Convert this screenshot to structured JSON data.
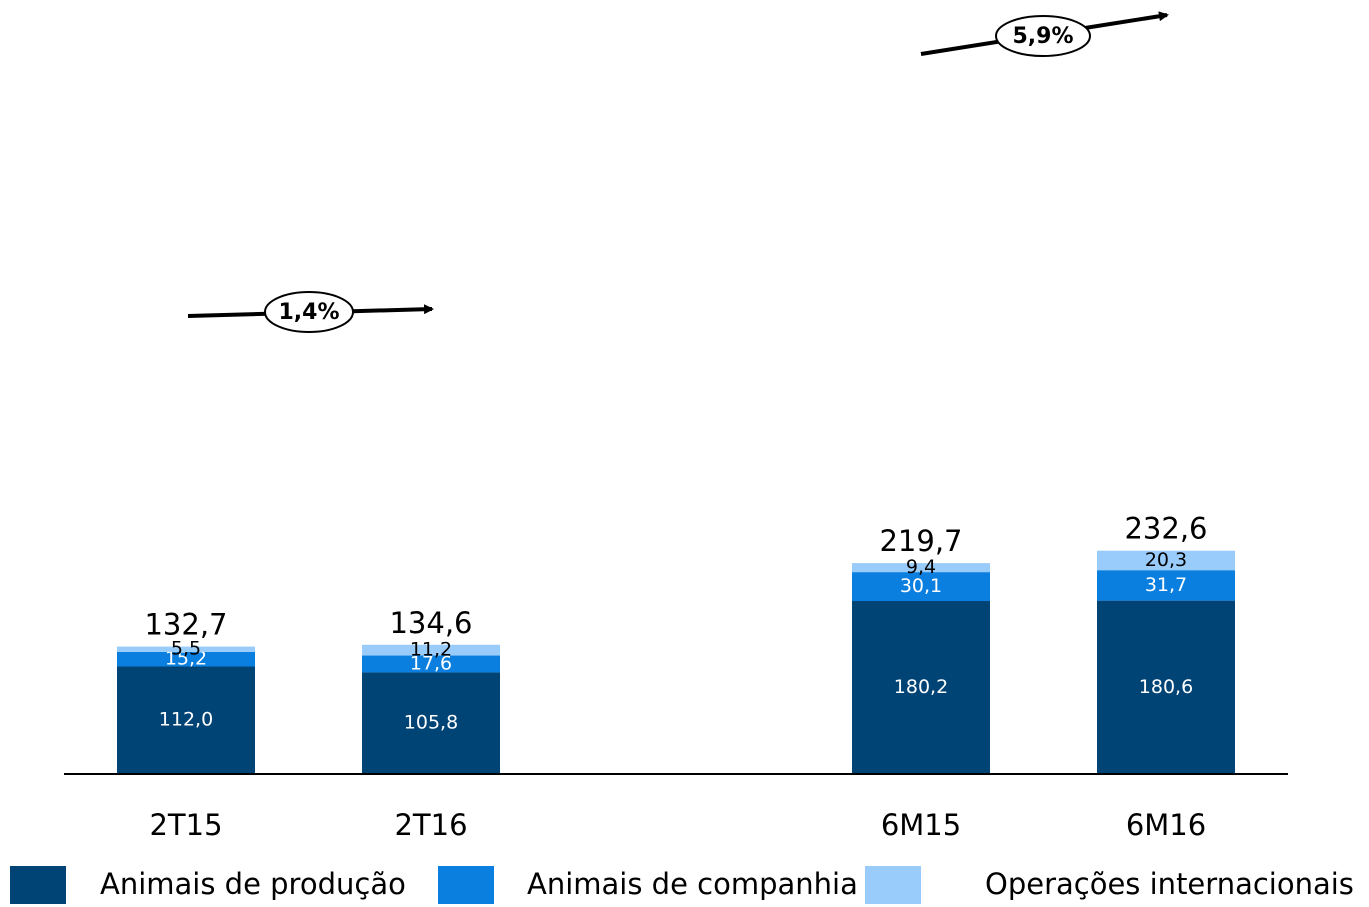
{
  "chart_data": {
    "type": "bar",
    "stacked": true,
    "categories": [
      "2T15",
      "2T16",
      "6M15",
      "6M16"
    ],
    "series": [
      {
        "name": "Animais de produção",
        "values": [
          112.0,
          105.8,
          180.2,
          180.6
        ],
        "labels": [
          "112,0",
          "105,8",
          "180,2",
          "180,6"
        ],
        "color": "#004375"
      },
      {
        "name": "Animais de companhia",
        "values": [
          15.2,
          17.6,
          30.1,
          31.7
        ],
        "labels": [
          "15,2",
          "17,6",
          "30,1",
          "31,7"
        ],
        "color": "#0a7fe0"
      },
      {
        "name": "Operações internacionais",
        "values": [
          5.5,
          11.2,
          9.4,
          20.3
        ],
        "labels": [
          "5,5",
          "11,2",
          "9,4",
          "20,3"
        ],
        "color": "#99ccfa"
      }
    ],
    "totals": [
      "132,7",
      "134,6",
      "219,7",
      "232,6"
    ],
    "total_values": [
      132.7,
      134.6,
      219.7,
      232.6
    ],
    "growth": [
      {
        "from": "2T15",
        "to": "2T16",
        "label": "1,4%"
      },
      {
        "from": "6M15",
        "to": "6M16",
        "label": "5,9%"
      }
    ],
    "ylim": [
      0,
      280
    ],
    "legend_position": "bottom",
    "grid": false
  }
}
